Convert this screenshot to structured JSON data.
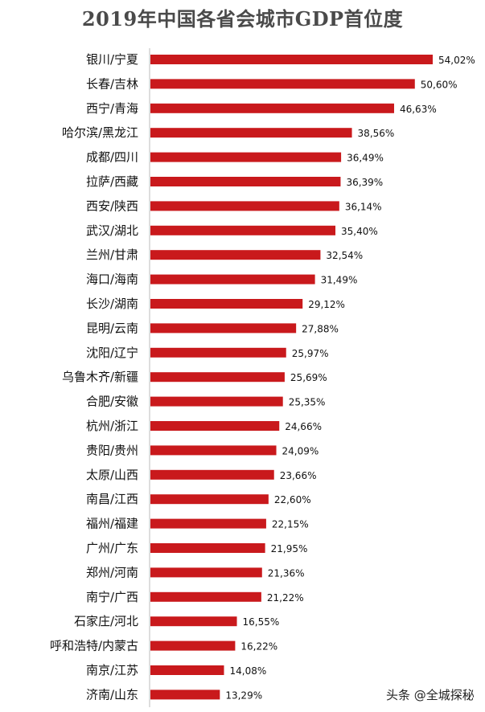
{
  "chart_data": {
    "type": "bar",
    "orientation": "horizontal",
    "title": "2019年中国各省会城市GDP首位度",
    "categories": [
      "银川/宁夏",
      "长春/吉林",
      "西宁/青海",
      "哈尔滨/黑龙江",
      "成都/四川",
      "拉萨/西藏",
      "西安/陕西",
      "武汉/湖北",
      "兰州/甘肃",
      "海口/海南",
      "长沙/湖南",
      "昆明/云南",
      "沈阳/辽宁",
      "乌鲁木齐/新疆",
      "合肥/安徽",
      "杭州/浙江",
      "贵阳/贵州",
      "太原/山西",
      "南昌/江西",
      "福州/福建",
      "广州/广东",
      "郑州/河南",
      "南宁/广西",
      "石家庄/河北",
      "呼和浩特/内蒙古",
      "南京/江苏",
      "济南/山东"
    ],
    "values": [
      54.02,
      50.6,
      46.63,
      38.56,
      36.49,
      36.39,
      36.14,
      35.4,
      32.54,
      31.49,
      29.12,
      27.88,
      25.97,
      25.69,
      25.35,
      24.66,
      24.09,
      23.66,
      22.6,
      22.15,
      21.95,
      21.36,
      21.22,
      16.55,
      16.22,
      14.08,
      13.29
    ],
    "value_labels": [
      "54,02%",
      "50,60%",
      "46,63%",
      "38,56%",
      "36,49%",
      "36,39%",
      "36,14%",
      "35,40%",
      "32,54%",
      "31,49%",
      "29,12%",
      "27,88%",
      "25,97%",
      "25,69%",
      "25,35%",
      "24,66%",
      "24,09%",
      "23,66%",
      "22,60%",
      "22,15%",
      "21,95%",
      "21,36%",
      "21,22%",
      "16,55%",
      "16,22%",
      "14,08%",
      "13,29%"
    ],
    "unit": "%",
    "xlim": [
      0,
      54.02
    ],
    "grid": false,
    "bar_color": "#c9191c"
  },
  "watermark": "头条 @全城探秘"
}
